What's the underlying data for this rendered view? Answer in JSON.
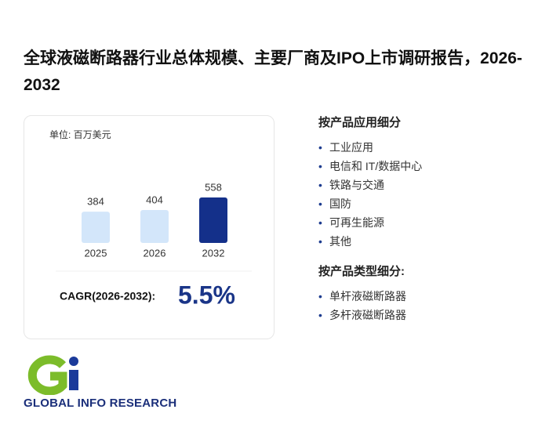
{
  "title": "全球液磁断路器行业总体规模、主要厂商及IPO上市调研报告，2026-2032",
  "chart_data": {
    "type": "bar",
    "unit_label": "单位: 百万美元",
    "categories": [
      "2025",
      "2026",
      "2032"
    ],
    "values": [
      384,
      404,
      558
    ],
    "colors": [
      "#d3e6fa",
      "#d3e6fa",
      "#14308a"
    ]
  },
  "cagr": {
    "label": "CAGR(2026-2032):",
    "value": "5.5%"
  },
  "segments": [
    {
      "heading": "按产品应用细分",
      "items": [
        "工业应用",
        "电信和 IT/数据中心",
        "铁路与交通",
        "国防",
        "可再生能源",
        "其他"
      ]
    },
    {
      "heading": "按产品类型细分:",
      "items": [
        "单杆液磁断路器",
        "多杆液磁断路器"
      ]
    }
  ],
  "logo": {
    "text": "GLOBAL INFO RESEARCH"
  }
}
